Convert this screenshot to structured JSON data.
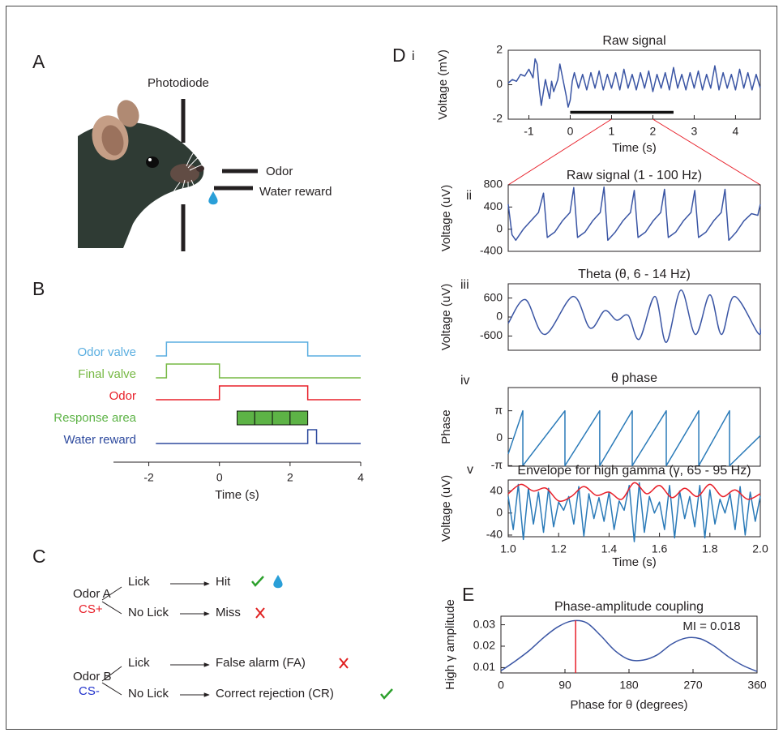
{
  "panels": {
    "A": {
      "label": "A",
      "photodiode": "Photodiode",
      "odor": "Odor",
      "water_reward": "Water reward"
    },
    "B": {
      "label": "B",
      "xlabel": "Time (s)",
      "xlim": [
        -3,
        4
      ],
      "xticks": [
        -2,
        0,
        2,
        4
      ],
      "traces": [
        {
          "name": "Odor valve",
          "color": "#5aaee0",
          "start": -1.8,
          "on": -1.5,
          "off": 2.5,
          "end": 4
        },
        {
          "name": "Final valve",
          "color": "#76b843",
          "start": -1.8,
          "on": -1.5,
          "off": 0,
          "end": 4
        },
        {
          "name": "Odor",
          "color": "#e8202a",
          "start": -1.8,
          "on": 0,
          "off": 2.5,
          "end": 4
        },
        {
          "name": "Water reward",
          "color": "#2e4a9e",
          "start": -1.8,
          "on": 2.5,
          "off": 2.75,
          "end": 4
        }
      ],
      "response_area": {
        "name": "Response area",
        "color": "#5db346",
        "edges": [
          0.5,
          1,
          1.5,
          2,
          2.5
        ]
      }
    },
    "C": {
      "label": "C",
      "odor_a": "Odor A",
      "cs_plus": "CS+",
      "a_lick": "Lick",
      "a_nolick": "No Lick",
      "hit": "Hit",
      "miss": "Miss",
      "odor_b": "Odor B",
      "cs_minus": "CS-",
      "b_lick": "Lick",
      "b_nolick": "No Lick",
      "fa": "False alarm (FA)",
      "cr": "Correct rejection (CR)"
    },
    "D": {
      "label": "D",
      "charts": [
        {
          "numeral": "i",
          "title": "Raw signal",
          "ylabel": "Voltage (mV)",
          "xlabel": "Time (s)",
          "xlim": [
            -1.5,
            4.6
          ],
          "ylim": [
            -2,
            2
          ],
          "xticks": [
            -1,
            0,
            1,
            2,
            3,
            4
          ],
          "yticks": [
            -2,
            0,
            2
          ],
          "series": [
            {
              "color": "#3a55a4",
              "x": [
                -1.5,
                -1.4,
                -1.3,
                -1.2,
                -1.1,
                -1.0,
                -0.9,
                -0.85,
                -0.8,
                -0.75,
                -0.7,
                -0.6,
                -0.5,
                -0.45,
                -0.4,
                -0.3,
                -0.25,
                -0.2,
                -0.1,
                -0.05,
                0,
                0.05,
                0.1,
                0.2,
                0.3,
                0.4,
                0.5,
                0.6,
                0.7,
                0.8,
                0.9,
                1.0,
                1.1,
                1.2,
                1.3,
                1.4,
                1.5,
                1.6,
                1.7,
                1.8,
                1.9,
                2.0,
                2.1,
                2.2,
                2.3,
                2.4,
                2.5,
                2.6,
                2.7,
                2.8,
                2.9,
                3.0,
                3.1,
                3.2,
                3.3,
                3.4,
                3.5,
                3.6,
                3.7,
                3.8,
                3.9,
                4.0,
                4.1,
                4.2,
                4.3,
                4.4,
                4.5,
                4.6
              ],
              "values": [
                0.1,
                0.3,
                0.2,
                0.6,
                0.5,
                0.9,
                0.4,
                1.5,
                1.2,
                -0.2,
                -1.2,
                0.3,
                -0.8,
                0.2,
                -0.4,
                0.3,
                1.2,
                0.6,
                -0.6,
                -1.3,
                -0.9,
                0.2,
                0.7,
                -0.2,
                0.6,
                -0.3,
                0.7,
                -0.2,
                0.8,
                -0.3,
                0.6,
                -0.2,
                0.7,
                -0.3,
                0.9,
                -0.2,
                0.6,
                -0.3,
                0.7,
                -0.2,
                0.8,
                -0.4,
                0.6,
                -0.2,
                0.7,
                -0.3,
                1.0,
                -0.2,
                0.6,
                -0.3,
                0.7,
                -0.2,
                0.8,
                -0.3,
                0.6,
                -0.2,
                1.1,
                -0.3,
                0.7,
                -0.2,
                0.6,
                -0.3,
                0.9,
                -0.2,
                0.7,
                -0.3,
                0.6,
                -0.2
              ]
            }
          ],
          "stimulus": {
            "x": [
              0,
              2.5
            ],
            "y": -1.6
          },
          "zoom": [
            1,
            2
          ],
          "zoom_color": "#e8202a"
        },
        {
          "numeral": "ii",
          "title": "Raw signal (1 - 100 Hz)",
          "ylabel": "Voltage (uV)",
          "xlim": [
            1,
            2
          ],
          "ylim": [
            -400,
            800
          ],
          "yticks": [
            800,
            400,
            0,
            -400
          ],
          "series": [
            {
              "color": "#3a55a4",
              "x": [
                1.0,
                1.015,
                1.03,
                1.06,
                1.09,
                1.12,
                1.14,
                1.155,
                1.185,
                1.215,
                1.245,
                1.26,
                1.275,
                1.305,
                1.335,
                1.365,
                1.38,
                1.395,
                1.425,
                1.455,
                1.485,
                1.5,
                1.515,
                1.545,
                1.575,
                1.605,
                1.62,
                1.635,
                1.665,
                1.695,
                1.725,
                1.74,
                1.755,
                1.785,
                1.815,
                1.845,
                1.86,
                1.875,
                1.905,
                1.935,
                1.965,
                1.99,
                2.0
              ],
              "values": [
                450,
                -100,
                -200,
                0,
                150,
                300,
                650,
                -150,
                -50,
                150,
                300,
                750,
                -150,
                -50,
                150,
                300,
                760,
                -200,
                -50,
                150,
                300,
                700,
                -150,
                -50,
                150,
                300,
                720,
                -150,
                -50,
                150,
                300,
                700,
                -150,
                -50,
                150,
                300,
                720,
                -200,
                -50,
                150,
                280,
                250,
                450
              ]
            }
          ]
        },
        {
          "numeral": "iii",
          "title": "Theta (θ, 6 - 14 Hz)",
          "ylabel": "Voltage (uV)",
          "xlim": [
            1,
            2
          ],
          "ylim": [
            -1050,
            1050
          ],
          "yticks": [
            600,
            0,
            -600
          ],
          "series": [
            {
              "color": "#3a55a4",
              "x": [
                1.0,
                1.068,
                1.145,
                1.257,
                1.325,
                1.383,
                1.43,
                1.476,
                1.52,
                1.582,
                1.627,
                1.685,
                1.743,
                1.8,
                1.846,
                1.897,
                1.99,
                2.0
              ],
              "values": [
                -200,
                550,
                -550,
                650,
                -350,
                200,
                -100,
                50,
                -700,
                650,
                -800,
                850,
                -550,
                700,
                -550,
                650,
                -500,
                -350
              ]
            }
          ]
        },
        {
          "numeral": "iv",
          "title": "θ phase",
          "ylabel": "Phase",
          "xlim": [
            1,
            2
          ],
          "ylim": [
            -3.2,
            5.8
          ],
          "yticks": [
            {
              "value": 3.14159,
              "label": "π"
            },
            0,
            {
              "value": -3.14159,
              "label": "-π"
            }
          ],
          "series": [
            {
              "color": "#2a7ab8",
              "x": [
                1.0,
                1.058,
                1.058,
                1.225,
                1.225,
                1.363,
                1.363,
                1.492,
                1.492,
                1.627,
                1.627,
                1.756,
                1.756,
                1.878,
                1.878,
                2.0
              ],
              "values": [
                -1.8,
                3.14,
                -3.14,
                3.14,
                -3.14,
                3.14,
                -3.14,
                3.14,
                -3.14,
                3.14,
                -3.14,
                3.14,
                -3.14,
                3.14,
                -3.14,
                0.3
              ]
            }
          ]
        },
        {
          "numeral": "v",
          "title": "Envelope for high gamma (γ, 65 - 95 Hz)",
          "ylabel": "Voltage (uV)",
          "xlabel": "Time (s)",
          "xlim": [
            1,
            2
          ],
          "ylim": [
            -43,
            60
          ],
          "xticks": [
            {
              "value": 1,
              "label": "1.0"
            },
            1.2,
            1.4,
            1.6,
            1.8,
            {
              "value": 2,
              "label": "2.0"
            }
          ],
          "yticks": [
            40,
            0,
            -40
          ],
          "series": [
            {
              "color": "#2a7ab8",
              "x": [
                1.0,
                1.02,
                1.04,
                1.06,
                1.08,
                1.1,
                1.12,
                1.14,
                1.16,
                1.18,
                1.2,
                1.22,
                1.24,
                1.26,
                1.28,
                1.3,
                1.32,
                1.34,
                1.36,
                1.38,
                1.4,
                1.42,
                1.44,
                1.46,
                1.48,
                1.5,
                1.52,
                1.54,
                1.56,
                1.58,
                1.6,
                1.62,
                1.64,
                1.66,
                1.68,
                1.7,
                1.72,
                1.74,
                1.76,
                1.78,
                1.8,
                1.82,
                1.84,
                1.86,
                1.88,
                1.9,
                1.92,
                1.94,
                1.96,
                1.98,
                2.0
              ],
              "values": [
                30,
                -30,
                52,
                -48,
                45,
                -20,
                38,
                -35,
                45,
                -25,
                20,
                5,
                30,
                -20,
                48,
                -42,
                35,
                -10,
                28,
                -15,
                38,
                -30,
                22,
                5,
                50,
                -52,
                55,
                -35,
                30,
                0,
                20,
                -30,
                50,
                -45,
                40,
                -10,
                30,
                -25,
                50,
                -45,
                42,
                -20,
                25,
                0,
                35,
                -30,
                48,
                -40,
                38,
                -15,
                30
              ]
            },
            {
              "color": "#e8202a",
              "x": [
                1.0,
                1.05,
                1.1,
                1.15,
                1.2,
                1.25,
                1.3,
                1.35,
                1.4,
                1.45,
                1.5,
                1.55,
                1.6,
                1.65,
                1.7,
                1.75,
                1.8,
                1.85,
                1.9,
                1.95,
                2.0
              ],
              "values": [
                35,
                52,
                40,
                45,
                22,
                30,
                48,
                32,
                38,
                25,
                55,
                35,
                50,
                28,
                45,
                30,
                52,
                30,
                42,
                25,
                35
              ]
            }
          ]
        }
      ]
    },
    "E": {
      "label": "E",
      "title": "Phase-amplitude coupling",
      "ylabel": "High γ amplitude",
      "xlabel": "Phase for θ (degrees)",
      "annotation": "MI = 0.018",
      "xlim": [
        0,
        360
      ],
      "ylim": [
        0.0075,
        0.034
      ],
      "xticks": [
        0,
        90,
        180,
        270,
        360
      ],
      "yticks": [
        0.03,
        0.02,
        0.01
      ],
      "series": [
        {
          "color": "#3a55a4",
          "x": [
            0,
            20,
            40,
            60,
            80,
            100,
            120,
            140,
            160,
            180,
            200,
            220,
            240,
            260,
            280,
            300,
            320,
            340,
            360
          ],
          "values": [
            0.0085,
            0.013,
            0.018,
            0.024,
            0.029,
            0.0318,
            0.031,
            0.025,
            0.018,
            0.0138,
            0.0135,
            0.016,
            0.021,
            0.0238,
            0.0235,
            0.02,
            0.015,
            0.011,
            0.0082
          ]
        }
      ],
      "peak": {
        "x": 105,
        "value": 0.032,
        "color": "#e8202a"
      }
    }
  }
}
